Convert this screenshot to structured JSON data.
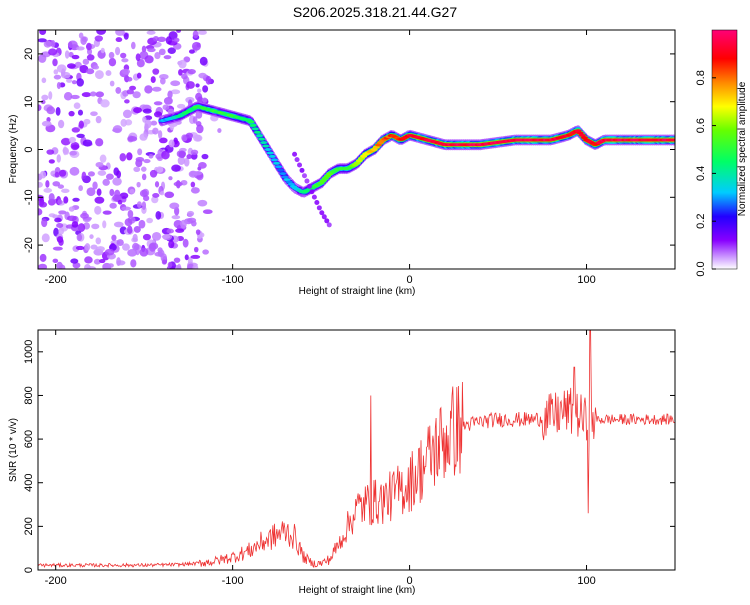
{
  "title": "S206.2025.318.21.44.G27",
  "chart_data": [
    {
      "type": "heatmap",
      "name": "spectrogram",
      "xlabel": "Height of straight line (km)",
      "ylabel": "Frequency (Hz)",
      "xlim": [
        -210,
        150
      ],
      "ylim": [
        -25,
        25
      ],
      "xticks": [
        -200,
        -100,
        0,
        100
      ],
      "yticks": [
        -20,
        -10,
        0,
        10,
        20
      ],
      "colorbar": {
        "label": "Normalized spectral amplitude",
        "range": [
          0,
          1
        ],
        "ticks": [
          0.0,
          0.2,
          0.4,
          0.6,
          0.8
        ],
        "tick_labels": [
          "0.0",
          "0.2",
          "0.4",
          "0.6",
          "0.8"
        ]
      },
      "noise_region_x": [
        -210,
        -115
      ],
      "ridge": {
        "x": [
          -140,
          -130,
          -120,
          -110,
          -100,
          -90,
          -85,
          -80,
          -75,
          -70,
          -65,
          -60,
          -55,
          -50,
          -45,
          -40,
          -35,
          -30,
          -25,
          -20,
          -15,
          -10,
          -5,
          0,
          20,
          40,
          60,
          80,
          90,
          95,
          100,
          105,
          110,
          120,
          130,
          140,
          150
        ],
        "freq": [
          6,
          7,
          9,
          8,
          7,
          6,
          3,
          0,
          -3,
          -6,
          -8,
          -9,
          -8,
          -7,
          -5,
          -4,
          -4,
          -3,
          -1,
          0,
          2,
          3,
          2,
          3,
          1,
          1,
          2,
          2,
          3,
          4,
          2,
          1,
          2,
          2,
          2,
          2,
          2
        ],
        "amplitude": [
          0.3,
          0.4,
          0.5,
          0.5,
          0.5,
          0.45,
          0.4,
          0.35,
          0.3,
          0.3,
          0.3,
          0.4,
          0.5,
          0.55,
          0.55,
          0.5,
          0.5,
          0.6,
          0.7,
          0.75,
          0.8,
          0.85,
          0.85,
          0.9,
          0.95,
          0.95,
          0.95,
          0.95,
          0.9,
          0.9,
          0.9,
          0.9,
          0.95,
          0.95,
          0.95,
          0.95,
          0.95
        ]
      },
      "ghost_track": {
        "x": [
          -65,
          -60,
          -55,
          -50,
          -45
        ],
        "freq": [
          -1,
          -5,
          -9,
          -13,
          -16
        ]
      }
    },
    {
      "type": "line",
      "name": "snr",
      "xlabel": "Height of straight line (km)",
      "ylabel": "SNR (10 * v/v)",
      "xlim": [
        -210,
        150
      ],
      "ylim": [
        0,
        1100
      ],
      "xticks": [
        -200,
        -100,
        0,
        100
      ],
      "yticks": [
        0,
        200,
        400,
        600,
        800,
        1000
      ],
      "color": "#ee3333",
      "series": [
        {
          "name": "SNR",
          "x": [
            -210,
            -190,
            -170,
            -150,
            -130,
            -120,
            -110,
            -100,
            -90,
            -85,
            -80,
            -75,
            -70,
            -65,
            -60,
            -55,
            -50,
            -45,
            -40,
            -35,
            -30,
            -25,
            -20,
            -15,
            -10,
            -5,
            0,
            5,
            10,
            15,
            20,
            25,
            30,
            35,
            40,
            50,
            60,
            70,
            80,
            85,
            90,
            95,
            100,
            105,
            110,
            120,
            130,
            140,
            150
          ],
          "values": [
            22,
            22,
            22,
            22,
            25,
            30,
            40,
            60,
            90,
            120,
            140,
            160,
            180,
            150,
            60,
            30,
            30,
            50,
            120,
            200,
            280,
            300,
            310,
            320,
            340,
            370,
            400,
            450,
            500,
            560,
            600,
            640,
            660,
            670,
            680,
            690,
            690,
            690,
            700,
            720,
            730,
            710,
            680,
            690,
            690,
            690,
            690,
            690,
            690
          ],
          "spikes": [
            {
              "x": -22,
              "y": 800
            },
            {
              "x": 93,
              "y": 930
            },
            {
              "x": 102,
              "y": 1100
            },
            {
              "x": 101,
              "y": 260
            }
          ]
        }
      ]
    }
  ]
}
